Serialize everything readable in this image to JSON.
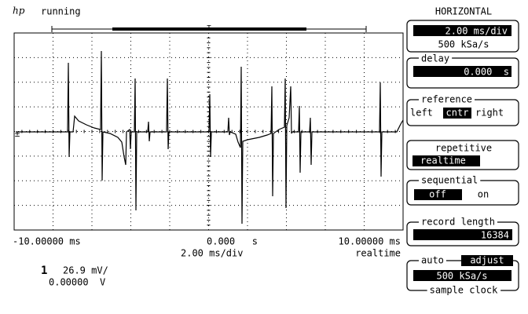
{
  "header": {
    "logo": "hp",
    "status": "running"
  },
  "display": {
    "x_left": "-10.00000 ms",
    "x_center": "0.000   s",
    "x_right": "10.00000 ms",
    "scale": "2.00 ms/div",
    "mode": "realtime"
  },
  "channel": {
    "number": "1",
    "scale": "26.9 mV/",
    "offset": "0.00000  V"
  },
  "panel": {
    "title": "HORIZONTAL",
    "timebase": "2.00 ms/div",
    "sample_rate": "500 kSa/s",
    "delay": {
      "label": "delay",
      "value": "0.000  s"
    },
    "reference": {
      "label": "reference",
      "options": [
        "left",
        "cntr",
        "right"
      ]
    },
    "repetitive": {
      "label": "repetitive",
      "value": "realtime"
    },
    "sequential": {
      "label": "sequential",
      "options": [
        "off",
        "on"
      ]
    },
    "record_length": {
      "label": "record length",
      "value": "16384"
    },
    "sample_clock": {
      "options": [
        "auto",
        "adjust"
      ],
      "value": "500 kSa/s",
      "label": "sample clock"
    }
  }
}
